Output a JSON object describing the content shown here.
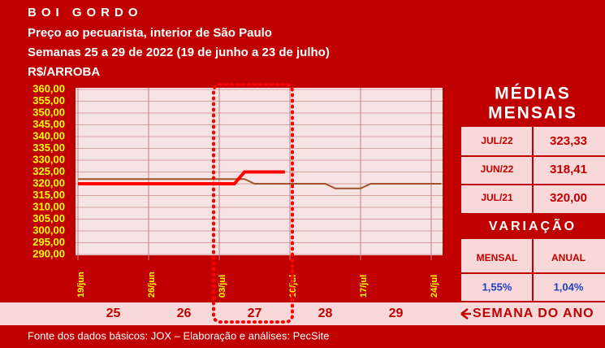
{
  "chart_data": {
    "type": "line",
    "title": "BOI GORDO",
    "subtitle": [
      "Preço ao pecuarista, interior de São Paulo",
      "Semanas 25 a 29 de 2022 (19 de junho a 23 de julho)"
    ],
    "y_label": "R$/ARROBA",
    "xlim": [
      0,
      36
    ],
    "xticks": [
      {
        "value": 0,
        "label": "19/jun"
      },
      {
        "value": 7,
        "label": "26/jun"
      },
      {
        "value": 14,
        "label": "03/jul"
      },
      {
        "value": 21,
        "label": "10/jul"
      },
      {
        "value": 28,
        "label": "17/jul"
      },
      {
        "value": 35,
        "label": "24/jul"
      }
    ],
    "ylim": [
      290,
      360
    ],
    "yticks": [
      {
        "value": 290,
        "label": "290,00"
      },
      {
        "value": 295,
        "label": "295,00"
      },
      {
        "value": 300,
        "label": "300,00"
      },
      {
        "value": 305,
        "label": "305,00"
      },
      {
        "value": 310,
        "label": "310,00"
      },
      {
        "value": 315,
        "label": "315,00"
      },
      {
        "value": 320,
        "label": "320,00"
      },
      {
        "value": 325,
        "label": "325,00"
      },
      {
        "value": 330,
        "label": "330,00"
      },
      {
        "value": 335,
        "label": "335,00"
      },
      {
        "value": 340,
        "label": "340,00"
      },
      {
        "value": 345,
        "label": "345,00"
      },
      {
        "value": 350,
        "label": "350,00"
      },
      {
        "value": 355,
        "label": "355,00"
      },
      {
        "value": 360,
        "label": "360,00"
      }
    ],
    "grid": true,
    "series": [
      {
        "color": "#a0522d",
        "width": 2,
        "x": [
          0,
          16.5,
          17.5,
          18,
          24.5,
          25.5,
          28,
          29,
          36
        ],
        "values": [
          322,
          322,
          320,
          320,
          320,
          318,
          318,
          320,
          320
        ]
      },
      {
        "color": "#ff0000",
        "width": 4,
        "x": [
          0,
          15.5,
          16.5,
          20.5
        ],
        "values": [
          320,
          320,
          325,
          325
        ]
      }
    ],
    "weeks": [
      "25",
      "26",
      "27",
      "28",
      "29"
    ],
    "weeks_label": "SEMANA DO ANO",
    "source": "Fonte dos dados básicos: JOX – Elaboração e análises: PecSite"
  },
  "sidebar": {
    "title": [
      "MÉDIAS",
      "MENSAIS"
    ],
    "rows": [
      [
        "JUL/22",
        "323,33"
      ],
      [
        "JUN/22",
        "318,41"
      ],
      [
        "JUL/21",
        "320,00"
      ]
    ],
    "variation_title": "VARIAÇÃO",
    "variation_headers": [
      "MENSAL",
      "ANUAL"
    ],
    "variation_values": [
      "1,55%",
      "1,04%"
    ]
  }
}
